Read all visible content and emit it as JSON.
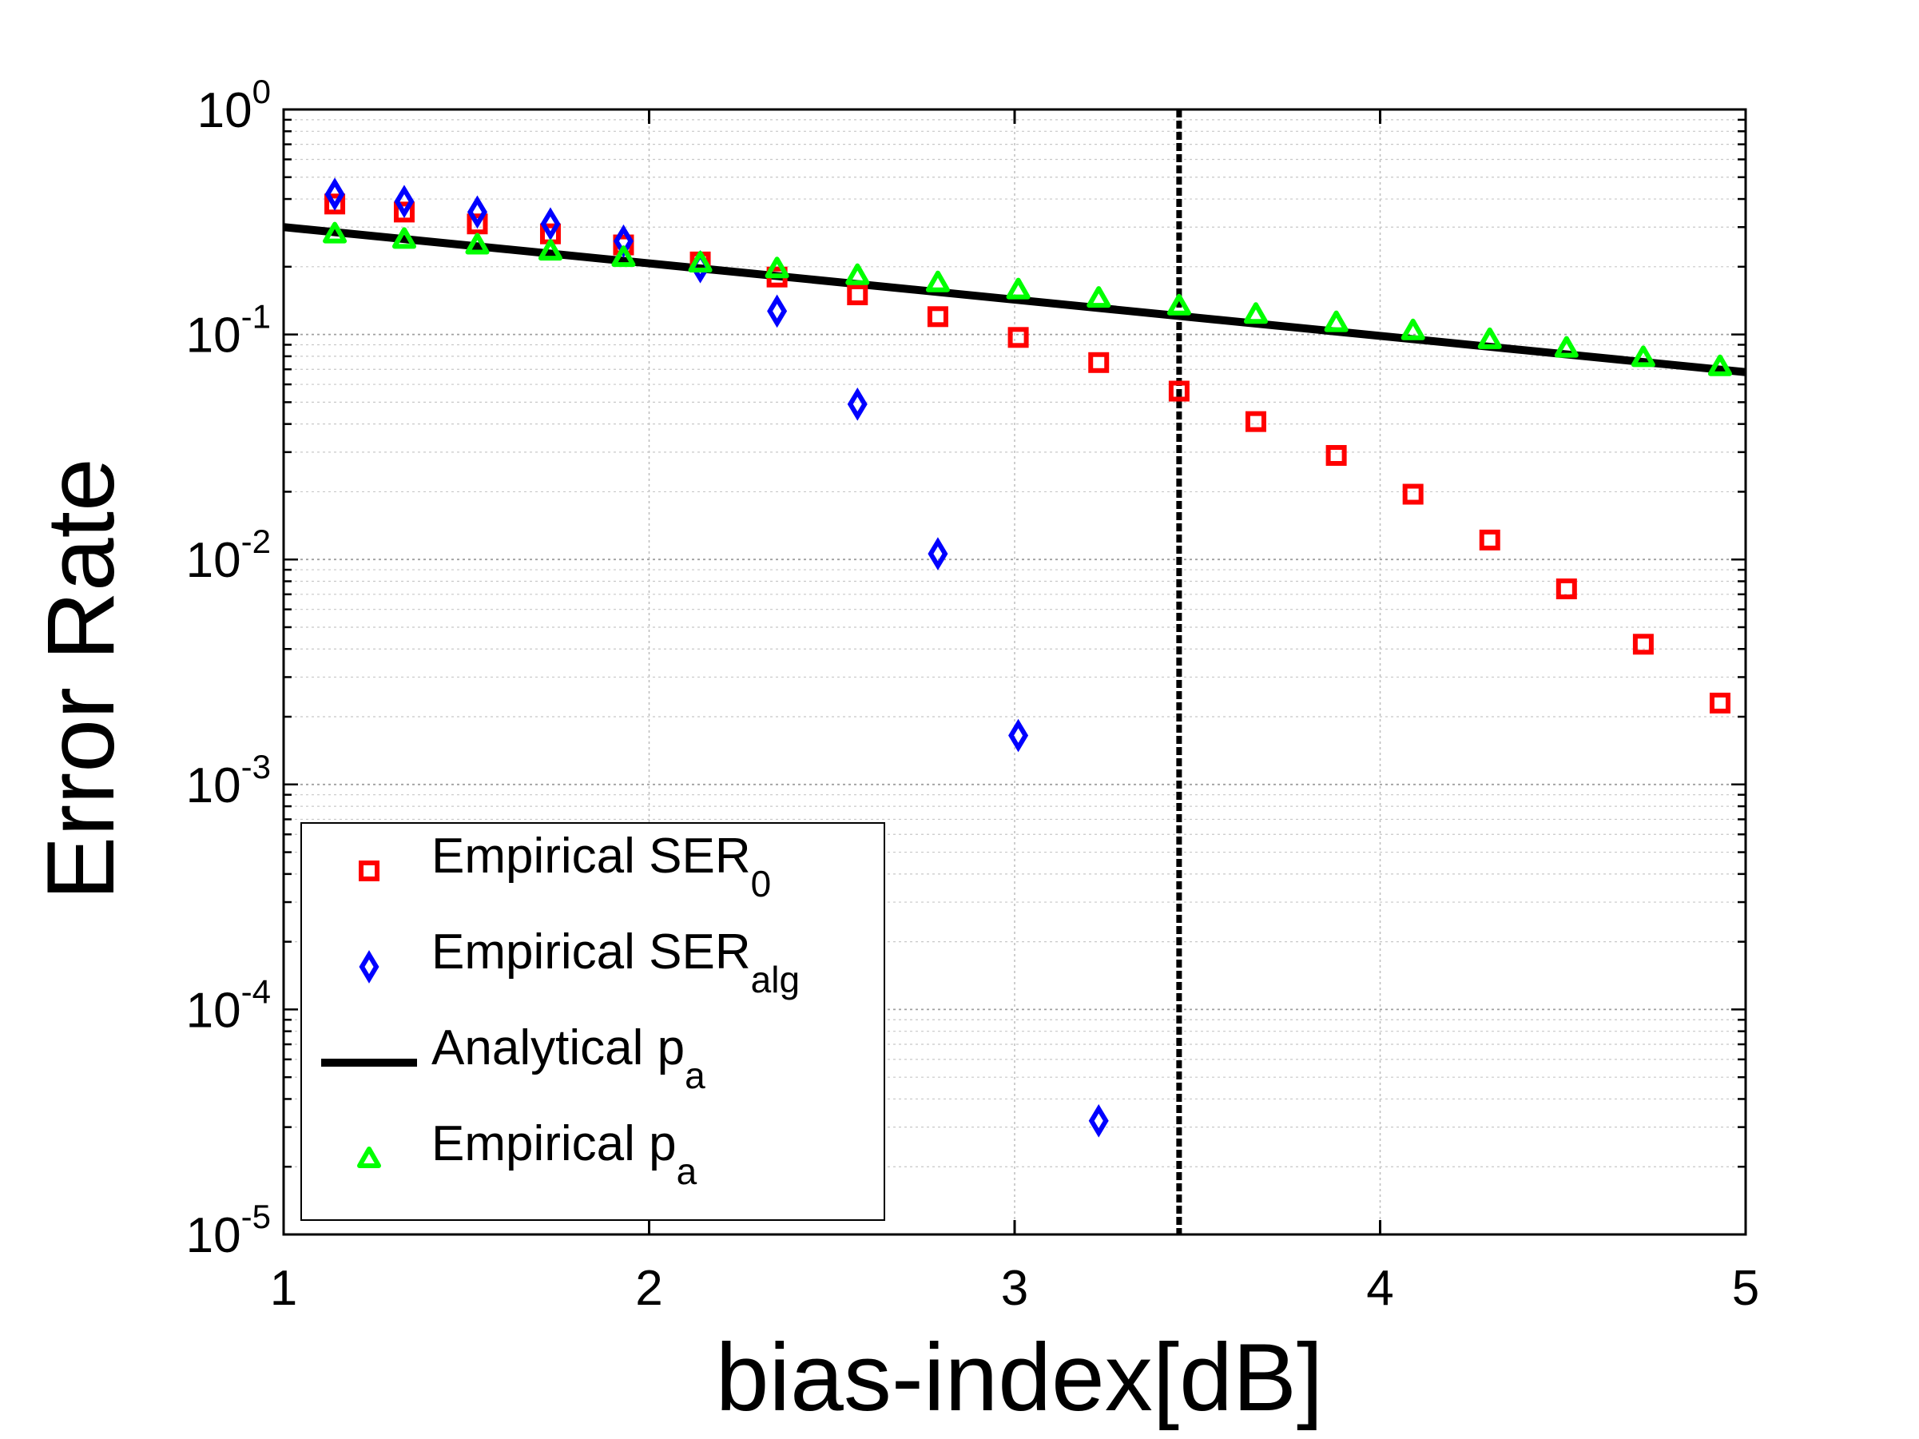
{
  "chart_data": {
    "type": "scatter",
    "xlabel": "bias-index[dB]",
    "ylabel": "Error Rate",
    "xlim": [
      1,
      5
    ],
    "ylim": [
      1e-05,
      1
    ],
    "yscale": "log",
    "grid": true,
    "x_ticks": [
      "1",
      "2",
      "3",
      "4",
      "5"
    ],
    "y_ticks": [
      {
        "base": "10",
        "exp": "0"
      },
      {
        "base": "10",
        "exp": "-1"
      },
      {
        "base": "10",
        "exp": "-2"
      },
      {
        "base": "10",
        "exp": "-3"
      },
      {
        "base": "10",
        "exp": "-4"
      },
      {
        "base": "10",
        "exp": "-5"
      }
    ],
    "vline_x": 3.45,
    "legend_position": "bottom-left",
    "series": [
      {
        "name": "Empirical SER",
        "sub": "0",
        "color": "#ff0000",
        "marker": "square",
        "x": [
          1.14,
          1.33,
          1.53,
          1.73,
          1.93,
          2.14,
          2.35,
          2.57,
          2.79,
          3.01,
          3.23,
          3.45,
          3.66,
          3.88,
          4.09,
          4.3,
          4.51,
          4.72,
          4.93
        ],
        "y": [
          0.38,
          0.35,
          0.31,
          0.28,
          0.25,
          0.21,
          0.18,
          0.15,
          0.12,
          0.097,
          0.075,
          0.056,
          0.041,
          0.029,
          0.0195,
          0.0122,
          0.0074,
          0.0042,
          0.0023
        ]
      },
      {
        "name": "Empirical SER",
        "sub": "alg",
        "color": "#0000ff",
        "marker": "diamond",
        "x": [
          1.14,
          1.33,
          1.53,
          1.73,
          1.93,
          2.14,
          2.35,
          2.57,
          2.79,
          3.01,
          3.23
        ],
        "y": [
          0.42,
          0.39,
          0.35,
          0.31,
          0.26,
          0.2,
          0.127,
          0.049,
          0.0106,
          0.00165,
          3.2e-05
        ]
      },
      {
        "name": "Analytical p",
        "sub": "a",
        "color": "#000000",
        "marker": "line",
        "x": [
          1.0,
          5.0
        ],
        "y": [
          0.3,
          0.068
        ]
      },
      {
        "name": "Empirical p",
        "sub": "a",
        "color": "#00ff00",
        "marker": "triangle",
        "x": [
          1.14,
          1.33,
          1.53,
          1.73,
          1.93,
          2.14,
          2.35,
          2.57,
          2.79,
          3.01,
          3.23,
          3.45,
          3.66,
          3.88,
          4.09,
          4.3,
          4.51,
          4.72,
          4.93
        ],
        "y": [
          0.28,
          0.265,
          0.25,
          0.235,
          0.22,
          0.208,
          0.196,
          0.183,
          0.17,
          0.158,
          0.145,
          0.134,
          0.123,
          0.113,
          0.104,
          0.095,
          0.087,
          0.079,
          0.072
        ]
      }
    ]
  }
}
